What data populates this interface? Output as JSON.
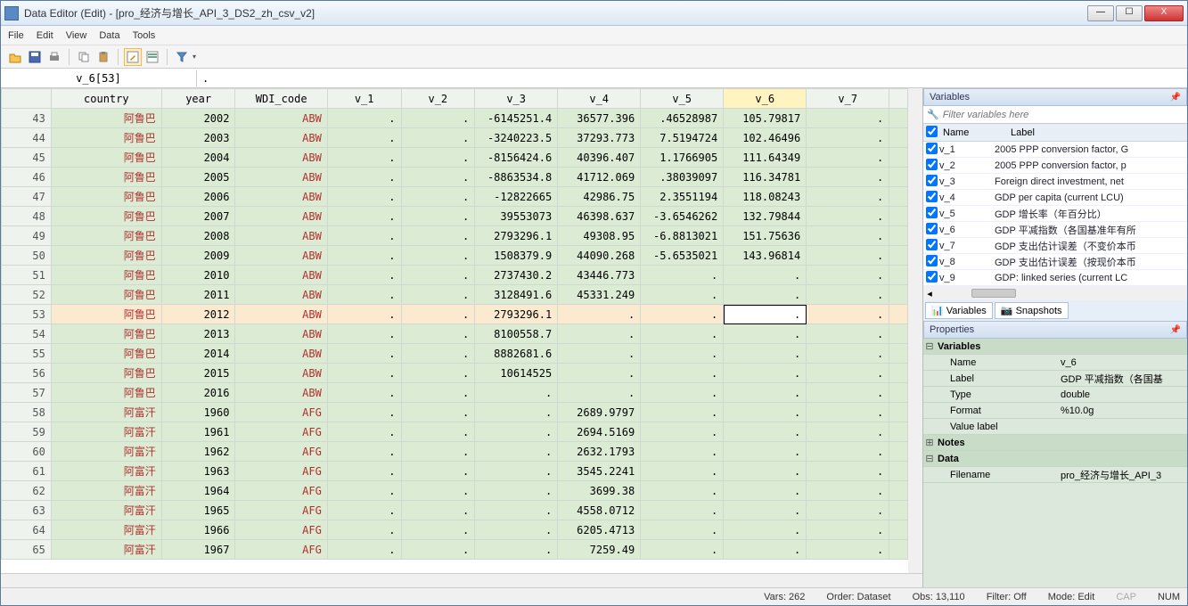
{
  "window": {
    "title": "Data Editor (Edit) - [pro_经济与增长_API_3_DS2_zh_csv_v2]"
  },
  "menu": [
    "File",
    "Edit",
    "View",
    "Data",
    "Tools"
  ],
  "cell": {
    "name": "v_6[53]",
    "value": "."
  },
  "columns": [
    "country",
    "year",
    "WDI_code",
    "v_1",
    "v_2",
    "v_3",
    "v_4",
    "v_5",
    "v_6",
    "v_7"
  ],
  "active_col": "v_6",
  "current_row": 53,
  "rows": [
    {
      "n": 43,
      "country": "阿鲁巴",
      "year": "2002",
      "WDI_code": "ABW",
      "v_1": ".",
      "v_2": ".",
      "v_3": "-6145251.4",
      "v_4": "36577.396",
      "v_5": ".46528987",
      "v_6": "105.79817",
      "v_7": "."
    },
    {
      "n": 44,
      "country": "阿鲁巴",
      "year": "2003",
      "WDI_code": "ABW",
      "v_1": ".",
      "v_2": ".",
      "v_3": "-3240223.5",
      "v_4": "37293.773",
      "v_5": "7.5194724",
      "v_6": "102.46496",
      "v_7": "."
    },
    {
      "n": 45,
      "country": "阿鲁巴",
      "year": "2004",
      "WDI_code": "ABW",
      "v_1": ".",
      "v_2": ".",
      "v_3": "-8156424.6",
      "v_4": "40396.407",
      "v_5": "1.1766905",
      "v_6": "111.64349",
      "v_7": "."
    },
    {
      "n": 46,
      "country": "阿鲁巴",
      "year": "2005",
      "WDI_code": "ABW",
      "v_1": ".",
      "v_2": ".",
      "v_3": "-8863534.8",
      "v_4": "41712.069",
      "v_5": ".38039097",
      "v_6": "116.34781",
      "v_7": "."
    },
    {
      "n": 47,
      "country": "阿鲁巴",
      "year": "2006",
      "WDI_code": "ABW",
      "v_1": ".",
      "v_2": ".",
      "v_3": "-12822665",
      "v_4": "42986.75",
      "v_5": "2.3551194",
      "v_6": "118.08243",
      "v_7": "."
    },
    {
      "n": 48,
      "country": "阿鲁巴",
      "year": "2007",
      "WDI_code": "ABW",
      "v_1": ".",
      "v_2": ".",
      "v_3": "39553073",
      "v_4": "46398.637",
      "v_5": "-3.6546262",
      "v_6": "132.79844",
      "v_7": "."
    },
    {
      "n": 49,
      "country": "阿鲁巴",
      "year": "2008",
      "WDI_code": "ABW",
      "v_1": ".",
      "v_2": ".",
      "v_3": "2793296.1",
      "v_4": "49308.95",
      "v_5": "-6.8813021",
      "v_6": "151.75636",
      "v_7": "."
    },
    {
      "n": 50,
      "country": "阿鲁巴",
      "year": "2009",
      "WDI_code": "ABW",
      "v_1": ".",
      "v_2": ".",
      "v_3": "1508379.9",
      "v_4": "44090.268",
      "v_5": "-5.6535021",
      "v_6": "143.96814",
      "v_7": "."
    },
    {
      "n": 51,
      "country": "阿鲁巴",
      "year": "2010",
      "WDI_code": "ABW",
      "v_1": ".",
      "v_2": ".",
      "v_3": "2737430.2",
      "v_4": "43446.773",
      "v_5": ".",
      "v_6": ".",
      "v_7": "."
    },
    {
      "n": 52,
      "country": "阿鲁巴",
      "year": "2011",
      "WDI_code": "ABW",
      "v_1": ".",
      "v_2": ".",
      "v_3": "3128491.6",
      "v_4": "45331.249",
      "v_5": ".",
      "v_6": ".",
      "v_7": "."
    },
    {
      "n": 53,
      "country": "阿鲁巴",
      "year": "2012",
      "WDI_code": "ABW",
      "v_1": ".",
      "v_2": ".",
      "v_3": "2793296.1",
      "v_4": ".",
      "v_5": ".",
      "v_6": ".",
      "v_7": "."
    },
    {
      "n": 54,
      "country": "阿鲁巴",
      "year": "2013",
      "WDI_code": "ABW",
      "v_1": ".",
      "v_2": ".",
      "v_3": "8100558.7",
      "v_4": ".",
      "v_5": ".",
      "v_6": ".",
      "v_7": "."
    },
    {
      "n": 55,
      "country": "阿鲁巴",
      "year": "2014",
      "WDI_code": "ABW",
      "v_1": ".",
      "v_2": ".",
      "v_3": "8882681.6",
      "v_4": ".",
      "v_5": ".",
      "v_6": ".",
      "v_7": "."
    },
    {
      "n": 56,
      "country": "阿鲁巴",
      "year": "2015",
      "WDI_code": "ABW",
      "v_1": ".",
      "v_2": ".",
      "v_3": "10614525",
      "v_4": ".",
      "v_5": ".",
      "v_6": ".",
      "v_7": "."
    },
    {
      "n": 57,
      "country": "阿鲁巴",
      "year": "2016",
      "WDI_code": "ABW",
      "v_1": ".",
      "v_2": ".",
      "v_3": ".",
      "v_4": ".",
      "v_5": ".",
      "v_6": ".",
      "v_7": "."
    },
    {
      "n": 58,
      "country": "阿富汗",
      "year": "1960",
      "WDI_code": "AFG",
      "v_1": ".",
      "v_2": ".",
      "v_3": ".",
      "v_4": "2689.9797",
      "v_5": ".",
      "v_6": ".",
      "v_7": "."
    },
    {
      "n": 59,
      "country": "阿富汗",
      "year": "1961",
      "WDI_code": "AFG",
      "v_1": ".",
      "v_2": ".",
      "v_3": ".",
      "v_4": "2694.5169",
      "v_5": ".",
      "v_6": ".",
      "v_7": "."
    },
    {
      "n": 60,
      "country": "阿富汗",
      "year": "1962",
      "WDI_code": "AFG",
      "v_1": ".",
      "v_2": ".",
      "v_3": ".",
      "v_4": "2632.1793",
      "v_5": ".",
      "v_6": ".",
      "v_7": "."
    },
    {
      "n": 61,
      "country": "阿富汗",
      "year": "1963",
      "WDI_code": "AFG",
      "v_1": ".",
      "v_2": ".",
      "v_3": ".",
      "v_4": "3545.2241",
      "v_5": ".",
      "v_6": ".",
      "v_7": "."
    },
    {
      "n": 62,
      "country": "阿富汗",
      "year": "1964",
      "WDI_code": "AFG",
      "v_1": ".",
      "v_2": ".",
      "v_3": ".",
      "v_4": "3699.38",
      "v_5": ".",
      "v_6": ".",
      "v_7": "."
    },
    {
      "n": 63,
      "country": "阿富汗",
      "year": "1965",
      "WDI_code": "AFG",
      "v_1": ".",
      "v_2": ".",
      "v_3": ".",
      "v_4": "4558.0712",
      "v_5": ".",
      "v_6": ".",
      "v_7": "."
    },
    {
      "n": 64,
      "country": "阿富汗",
      "year": "1966",
      "WDI_code": "AFG",
      "v_1": ".",
      "v_2": ".",
      "v_3": ".",
      "v_4": "6205.4713",
      "v_5": ".",
      "v_6": ".",
      "v_7": "."
    },
    {
      "n": 65,
      "country": "阿富汗",
      "year": "1967",
      "WDI_code": "AFG",
      "v_1": ".",
      "v_2": ".",
      "v_3": ".",
      "v_4": "7259.49",
      "v_5": ".",
      "v_6": ".",
      "v_7": "."
    }
  ],
  "text_cols": [
    "country",
    "WDI_code"
  ],
  "colwidths": {
    "rownum": 54,
    "country": 120,
    "year": 80,
    "WDI_code": 100,
    "v_1": 80,
    "v_2": 80,
    "v_3": 90,
    "v_4": 90,
    "v_5": 90,
    "v_6": 90,
    "v_7": 90
  },
  "variables_panel": {
    "title": "Variables",
    "filter_placeholder": "Filter variables here",
    "hdr_name": "Name",
    "hdr_label": "Label",
    "vars": [
      {
        "name": "v_1",
        "label": "2005 PPP conversion factor, G"
      },
      {
        "name": "v_2",
        "label": "2005 PPP conversion factor, p"
      },
      {
        "name": "v_3",
        "label": "Foreign direct investment, net"
      },
      {
        "name": "v_4",
        "label": "GDP per capita (current LCU)"
      },
      {
        "name": "v_5",
        "label": "GDP 增长率（年百分比）"
      },
      {
        "name": "v_6",
        "label": "GDP 平减指数（各国基准年有所"
      },
      {
        "name": "v_7",
        "label": "GDP 支出估计误差（不变价本币"
      },
      {
        "name": "v_8",
        "label": "GDP 支出估计误差（按现价本币"
      },
      {
        "name": "v_9",
        "label": "GDP: linked series (current LC"
      }
    ],
    "tabs": [
      "Variables",
      "Snapshots"
    ]
  },
  "properties_panel": {
    "title": "Properties",
    "groups": [
      {
        "exp": "⊟",
        "title": "Variables",
        "rows": [
          {
            "k": "Name",
            "v": "v_6"
          },
          {
            "k": "Label",
            "v": "GDP 平减指数（各国基"
          },
          {
            "k": "Type",
            "v": "double"
          },
          {
            "k": "Format",
            "v": "%10.0g"
          },
          {
            "k": "Value label",
            "v": ""
          }
        ]
      },
      {
        "exp": "⊞",
        "title": "Notes",
        "rows": []
      },
      {
        "exp": "⊟",
        "title": "Data",
        "rows": [
          {
            "k": "Filename",
            "v": "pro_经济与增长_API_3"
          }
        ]
      }
    ]
  },
  "statusbar": {
    "vars": "Vars: 262",
    "order": "Order: Dataset",
    "obs": "Obs: 13,110",
    "filter": "Filter: Off",
    "mode": "Mode: Edit",
    "cap": "CAP",
    "num": "NUM"
  }
}
